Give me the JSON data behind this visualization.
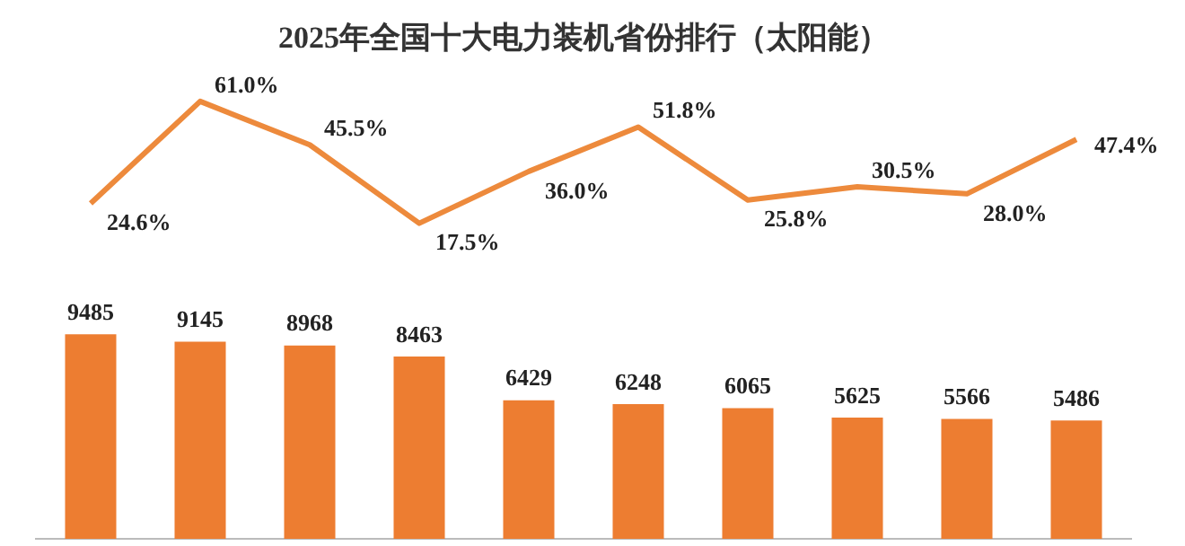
{
  "chart_data": [
    {
      "type": "line",
      "title": "2025年全国十大电力装机省份排行（太阳能）",
      "categories": [
        null,
        null,
        null,
        null,
        null,
        null,
        null,
        null,
        null,
        null
      ],
      "series": [
        {
          "color": "#ed8a3c",
          "values": [
            24.6,
            61.0,
            45.5,
            17.5,
            36.0,
            51.8,
            25.8,
            30.5,
            28.0,
            47.4
          ],
          "value_labels": [
            "24.6%",
            "61.0%",
            "45.5%",
            "17.5%",
            "36.0%",
            "51.8%",
            "25.8%",
            "30.5%",
            "28.0%",
            "47.4%"
          ]
        }
      ],
      "tick_labels": false,
      "marker": "none"
    },
    {
      "type": "bar",
      "categories": [
        null,
        null,
        null,
        null,
        null,
        null,
        null,
        null,
        null,
        null
      ],
      "series": [
        {
          "color": "#ed7d31",
          "values": [
            9485,
            9145,
            8968,
            8463,
            6429,
            6248,
            6065,
            5625,
            5566,
            5486
          ],
          "value_labels": [
            "9485",
            "9145",
            "8968",
            "8463",
            "6429",
            "6248",
            "6065",
            "5625",
            "5566",
            "5486"
          ]
        }
      ],
      "tick_labels": false
    }
  ]
}
